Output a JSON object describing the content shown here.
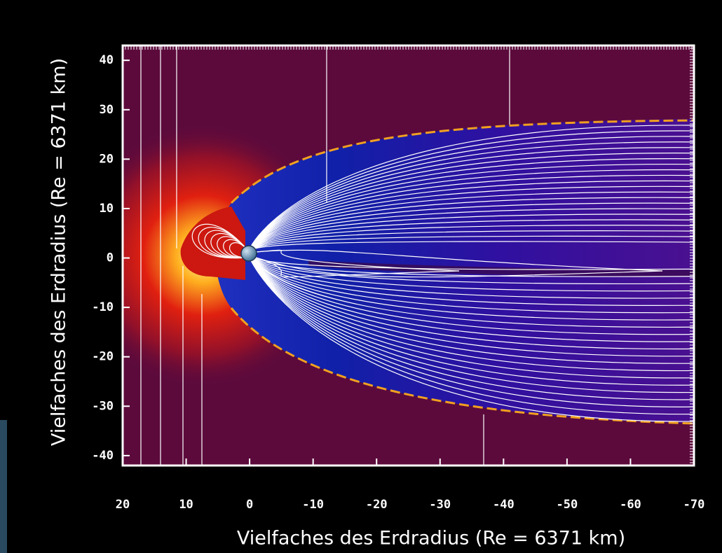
{
  "chart_data": {
    "type": "heatmap",
    "xlabel": "Vielfaches des Erdradius (Re = 6371 km)",
    "ylabel": "Vielfaches des Erdradius (Re = 6371 km)",
    "xlim": [
      20,
      -70
    ],
    "ylim": [
      -42,
      43
    ],
    "xticks": [
      20,
      10,
      0,
      -10,
      -20,
      -30,
      -40,
      -50,
      -60,
      -70
    ],
    "yticks": [
      40,
      30,
      20,
      10,
      0,
      -10,
      -20,
      -30,
      -40
    ]
  }
}
